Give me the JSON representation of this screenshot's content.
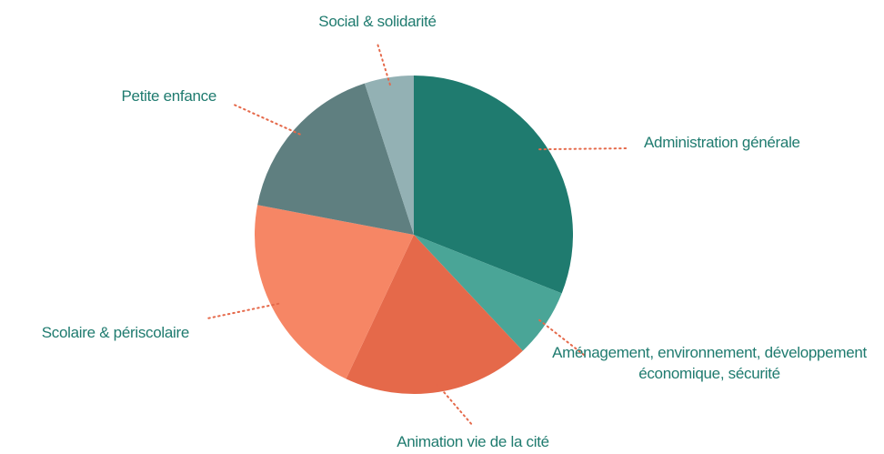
{
  "chart_data": {
    "type": "pie",
    "categories": [
      "Administration générale",
      "Aménagement, environnement, développement économique, sécurité",
      "Animation vie de la cité",
      "Scolaire & périscolaire",
      "Petite enfance",
      "Social & solidarité"
    ],
    "values": [
      31,
      7,
      19,
      21,
      17,
      5
    ],
    "colors": [
      "#1f7b6f",
      "#4aa597",
      "#e5694a",
      "#f68665",
      "#5f7f80",
      "#93b1b4"
    ]
  }
}
